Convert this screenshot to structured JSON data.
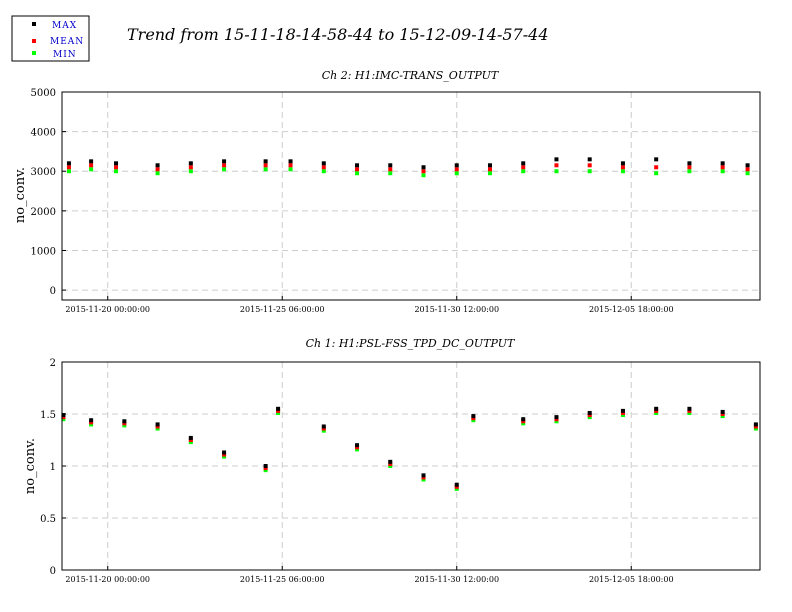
{
  "figure_title": "Trend from 15-11-18-14-58-44 to 15-12-09-14-57-44",
  "legend": [
    {
      "label": "MAX",
      "color": "#000000"
    },
    {
      "label": "MEAN",
      "color": "#ff0000"
    },
    {
      "label": "MIN",
      "color": "#00ff00"
    }
  ],
  "chart_data": [
    {
      "type": "scatter",
      "title": "Ch 2: H1:IMC-TRANS_OUTPUT",
      "ylabel": "no_conv.",
      "xlabel": "",
      "ylim": [
        -250,
        5000
      ],
      "yticks": [
        "0",
        "1000",
        "2000",
        "3000",
        "4000",
        "5000"
      ],
      "ytick_values": [
        0,
        1000,
        2000,
        3000,
        4000,
        5000
      ],
      "xlim": [
        "2015-11-18 14:58:44",
        "2015-12-09 14:57:44"
      ],
      "xticks": [
        "2015-11-20 00:00:00",
        "2015-11-25 06:00:00",
        "2015-11-30 12:00:00",
        "2015-12-05 18:00:00"
      ],
      "grid": true,
      "series": [
        {
          "name": "MAX",
          "color": "#000000",
          "x": [
            "2015-11-18 20:00",
            "2015-11-19 12:00",
            "2015-11-20 06:00",
            "2015-11-21 12:00",
            "2015-11-22 12:00",
            "2015-11-23 12:00",
            "2015-11-24 18:00",
            "2015-11-25 12:00",
            "2015-11-26 12:00",
            "2015-11-27 12:00",
            "2015-11-28 12:00",
            "2015-11-29 12:00",
            "2015-11-30 12:00",
            "2015-12-01 12:00",
            "2015-12-02 12:00",
            "2015-12-03 12:00",
            "2015-12-04 12:00",
            "2015-12-05 12:00",
            "2015-12-06 12:00",
            "2015-12-07 12:00",
            "2015-12-08 12:00",
            "2015-12-09 06:00"
          ],
          "values": [
            3200,
            3250,
            3200,
            3150,
            3200,
            3250,
            3250,
            3250,
            3200,
            3150,
            3150,
            3100,
            3150,
            3150,
            3200,
            3300,
            3300,
            3200,
            3300,
            3200,
            3200,
            3150
          ]
        },
        {
          "name": "MEAN",
          "color": "#ff0000",
          "x": [
            "2015-11-18 20:00",
            "2015-11-19 12:00",
            "2015-11-20 06:00",
            "2015-11-21 12:00",
            "2015-11-22 12:00",
            "2015-11-23 12:00",
            "2015-11-24 18:00",
            "2015-11-25 12:00",
            "2015-11-26 12:00",
            "2015-11-27 12:00",
            "2015-11-28 12:00",
            "2015-11-29 12:00",
            "2015-11-30 12:00",
            "2015-12-01 12:00",
            "2015-12-02 12:00",
            "2015-12-03 12:00",
            "2015-12-04 12:00",
            "2015-12-05 12:00",
            "2015-12-06 12:00",
            "2015-12-07 12:00",
            "2015-12-08 12:00",
            "2015-12-09 06:00"
          ],
          "values": [
            3100,
            3150,
            3100,
            3050,
            3100,
            3150,
            3150,
            3150,
            3100,
            3050,
            3050,
            3000,
            3050,
            3050,
            3100,
            3150,
            3150,
            3100,
            3100,
            3100,
            3100,
            3050
          ]
        },
        {
          "name": "MIN",
          "color": "#00ff00",
          "x": [
            "2015-11-18 20:00",
            "2015-11-19 12:00",
            "2015-11-20 06:00",
            "2015-11-21 12:00",
            "2015-11-22 12:00",
            "2015-11-23 12:00",
            "2015-11-24 18:00",
            "2015-11-25 12:00",
            "2015-11-26 12:00",
            "2015-11-27 12:00",
            "2015-11-28 12:00",
            "2015-11-29 12:00",
            "2015-11-30 12:00",
            "2015-12-01 12:00",
            "2015-12-02 12:00",
            "2015-12-03 12:00",
            "2015-12-04 12:00",
            "2015-12-05 12:00",
            "2015-12-06 12:00",
            "2015-12-07 12:00",
            "2015-12-08 12:00",
            "2015-12-09 06:00"
          ],
          "values": [
            3000,
            3050,
            3000,
            2950,
            3000,
            3050,
            3050,
            3050,
            3000,
            2950,
            2950,
            2900,
            2950,
            2950,
            3000,
            3000,
            3000,
            3000,
            2950,
            3000,
            3000,
            2950
          ]
        }
      ]
    },
    {
      "type": "scatter",
      "title": "Ch 1: H1:PSL-FSS_TPD_DC_OUTPUT",
      "ylabel": "no_conv.",
      "xlabel": "",
      "ylim": [
        0,
        2
      ],
      "yticks": [
        "0",
        "0.5",
        "1",
        "1.5",
        "2"
      ],
      "ytick_values": [
        0,
        0.5,
        1,
        1.5,
        2
      ],
      "xlim": [
        "2015-11-18 14:58:44",
        "2015-12-09 14:57:44"
      ],
      "xticks": [
        "2015-11-20 00:00:00",
        "2015-11-25 06:00:00",
        "2015-11-30 12:00:00",
        "2015-12-05 18:00:00"
      ],
      "grid": true,
      "series": [
        {
          "name": "MAX",
          "color": "#000000",
          "x": [
            "2015-11-18 16:00",
            "2015-11-19 12:00",
            "2015-11-20 12:00",
            "2015-11-21 12:00",
            "2015-11-22 12:00",
            "2015-11-23 12:00",
            "2015-11-24 18:00",
            "2015-11-25 03:00",
            "2015-11-26 12:00",
            "2015-11-27 12:00",
            "2015-11-28 12:00",
            "2015-11-29 12:00",
            "2015-11-30 12:00",
            "2015-12-01 00:00",
            "2015-12-02 12:00",
            "2015-12-03 12:00",
            "2015-12-04 12:00",
            "2015-12-05 12:00",
            "2015-12-06 12:00",
            "2015-12-07 12:00",
            "2015-12-08 12:00",
            "2015-12-09 12:00"
          ],
          "values": [
            1.49,
            1.44,
            1.43,
            1.4,
            1.27,
            1.13,
            1.0,
            1.55,
            1.38,
            1.2,
            1.04,
            0.91,
            0.82,
            1.48,
            1.45,
            1.47,
            1.51,
            1.53,
            1.55,
            1.55,
            1.52,
            1.4
          ]
        },
        {
          "name": "MEAN",
          "color": "#ff0000",
          "x": [
            "2015-11-18 16:00",
            "2015-11-19 12:00",
            "2015-11-20 12:00",
            "2015-11-21 12:00",
            "2015-11-22 12:00",
            "2015-11-23 12:00",
            "2015-11-24 18:00",
            "2015-11-25 03:00",
            "2015-11-26 12:00",
            "2015-11-27 12:00",
            "2015-11-28 12:00",
            "2015-11-29 12:00",
            "2015-11-30 12:00",
            "2015-12-01 00:00",
            "2015-12-02 12:00",
            "2015-12-03 12:00",
            "2015-12-04 12:00",
            "2015-12-05 12:00",
            "2015-12-06 12:00",
            "2015-12-07 12:00",
            "2015-12-08 12:00",
            "2015-12-09 12:00"
          ],
          "values": [
            1.47,
            1.42,
            1.41,
            1.38,
            1.25,
            1.11,
            0.98,
            1.53,
            1.36,
            1.18,
            1.02,
            0.89,
            0.8,
            1.46,
            1.43,
            1.45,
            1.49,
            1.51,
            1.53,
            1.53,
            1.5,
            1.38
          ]
        },
        {
          "name": "MIN",
          "color": "#00ff00",
          "x": [
            "2015-11-18 16:00",
            "2015-11-19 12:00",
            "2015-11-20 12:00",
            "2015-11-21 12:00",
            "2015-11-22 12:00",
            "2015-11-23 12:00",
            "2015-11-24 18:00",
            "2015-11-25 03:00",
            "2015-11-26 12:00",
            "2015-11-27 12:00",
            "2015-11-28 12:00",
            "2015-11-29 12:00",
            "2015-11-30 12:00",
            "2015-12-01 00:00",
            "2015-12-02 12:00",
            "2015-12-03 12:00",
            "2015-12-04 12:00",
            "2015-12-05 12:00",
            "2015-12-06 12:00",
            "2015-12-07 12:00",
            "2015-12-08 12:00",
            "2015-12-09 12:00"
          ],
          "values": [
            1.45,
            1.4,
            1.39,
            1.36,
            1.23,
            1.09,
            0.96,
            1.51,
            1.34,
            1.16,
            1.0,
            0.87,
            0.78,
            1.44,
            1.41,
            1.43,
            1.47,
            1.49,
            1.51,
            1.51,
            1.48,
            1.36
          ]
        }
      ]
    }
  ]
}
